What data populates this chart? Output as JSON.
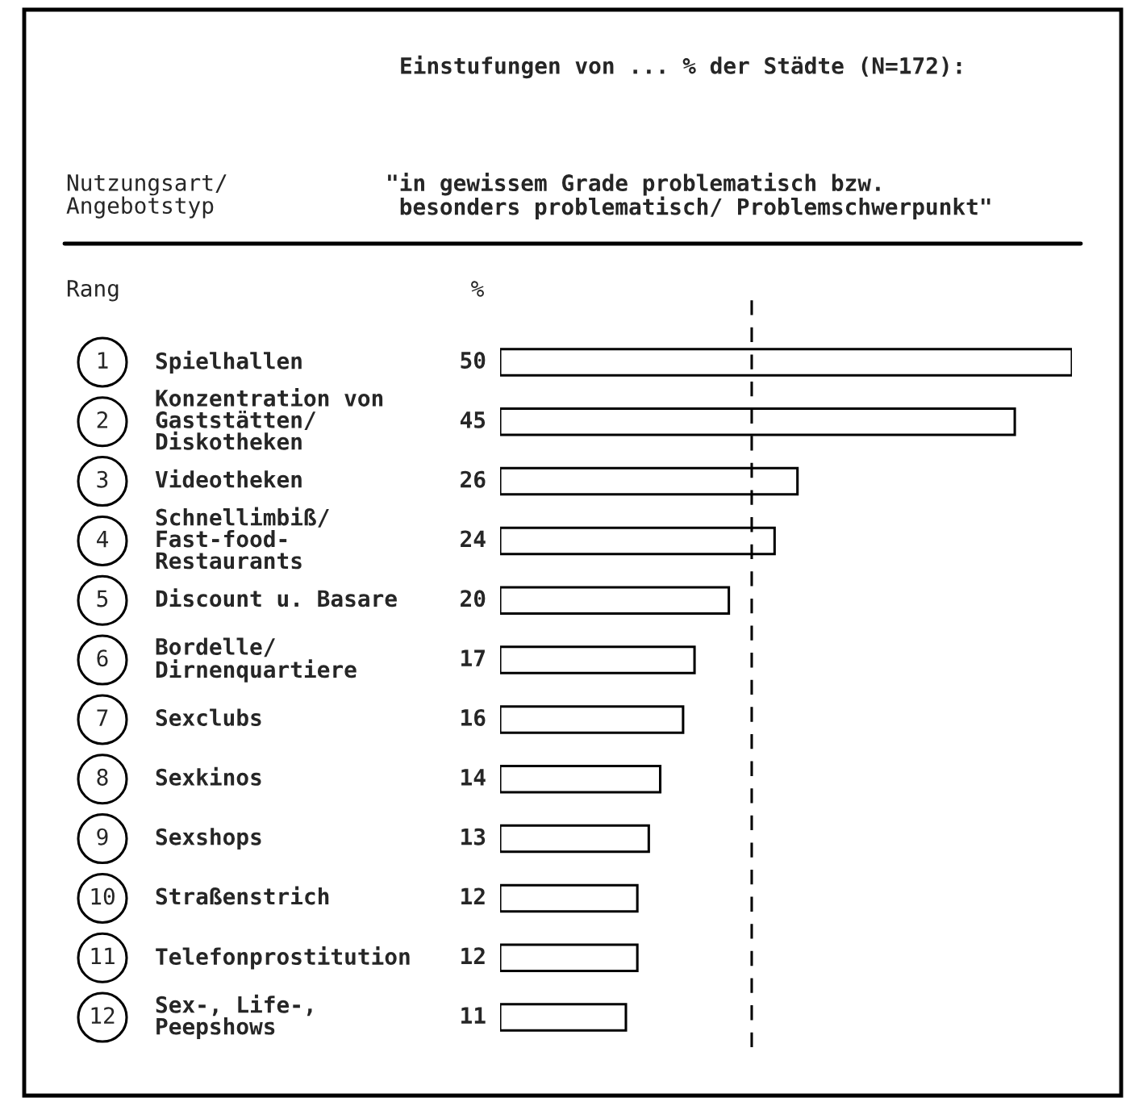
{
  "chart_data": {
    "type": "bar",
    "orientation": "horizontal",
    "title": "Einstufungen von ... % der Städte (N=172):",
    "subtitle": "\"in gewissem Grade problematisch bzw.\n besonders problematisch/ Problemschwerpunkt\"",
    "ylabel": "Nutzungsart/\nAngebotstyp",
    "categories": [
      "Spielhallen",
      "Konzentration von\nGaststätten/\nDiskotheken",
      "Videotheken",
      "Schnellimbiß/\nFast-food-\nRestaurants",
      "Discount u. Basare",
      "Bordelle/\nDirnenquartiere",
      "Sexclubs",
      "Sexkinos",
      "Sexshops",
      "Straßenstrich",
      "Telefonprostitution",
      "Sex-, Life-,\nPeepshows"
    ],
    "values": [
      50,
      45,
      26,
      24,
      20,
      17,
      16,
      14,
      13,
      12,
      12,
      11
    ],
    "color": "#ffffff",
    "data_labels": true,
    "ref_lines": [
      {
        "axis": "x",
        "value": 22,
        "color": "#000000",
        "line_style": "dashed"
      }
    ],
    "annotations": [
      "Rang",
      "%",
      "1",
      "2",
      "3",
      "4",
      "5",
      "6",
      "7",
      "8",
      "9",
      "10",
      "11",
      "12"
    ]
  }
}
